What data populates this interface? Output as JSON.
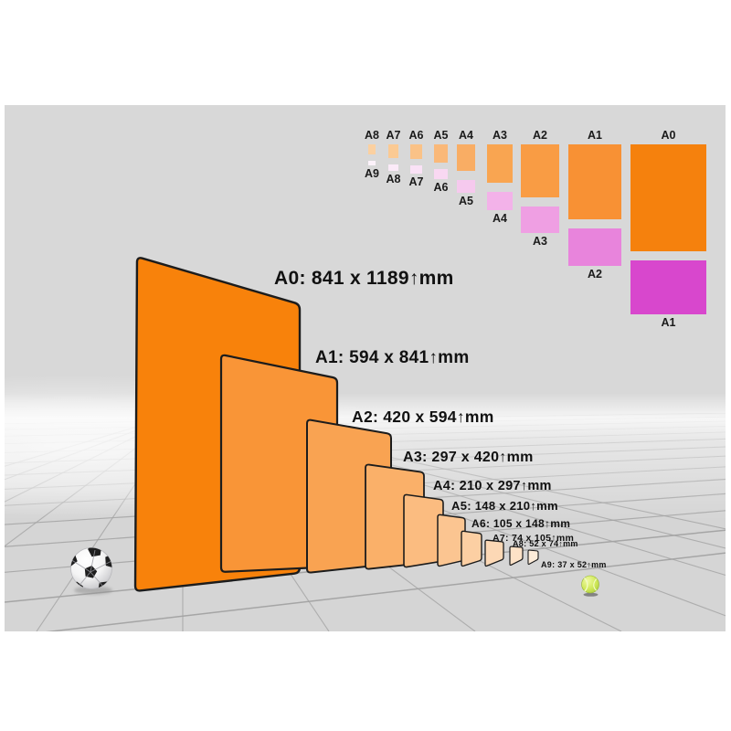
{
  "colors": {
    "background": "#ffffff",
    "wall": "#d8d8d8",
    "floor": "#d5d5d5",
    "grid_line": "#a2a2a2",
    "sheet_border": "#1c1c1c",
    "label_text": "#111111",
    "key_label_text": "#1a1a1a",
    "soccer_ball_patch": "#1e1e1e",
    "tennis_ball": "#c3dd4a",
    "shadow": "#909090"
  },
  "cascade": {
    "sheets": [
      {
        "id": "A0",
        "label": "A0: 841 x 1189↑mm",
        "fill": "#f8820b"
      },
      {
        "id": "A1",
        "label": "A1: 594 x 841↑mm",
        "fill": "#f99537"
      },
      {
        "id": "A2",
        "label": "A2: 420 x 594↑mm",
        "fill": "#f9a352"
      },
      {
        "id": "A3",
        "label": "A3: 297 x 420↑mm",
        "fill": "#fab069"
      },
      {
        "id": "A4",
        "label": "A4: 210 x 297↑mm",
        "fill": "#fbbc80"
      },
      {
        "id": "A5",
        "label": "A5: 148 x 210↑mm",
        "fill": "#fbc591"
      },
      {
        "id": "A6",
        "label": "A6: 105 x 148↑mm",
        "fill": "#fccfa3"
      },
      {
        "id": "A7",
        "label": "A7: 74 x 105↑mm",
        "fill": "#fcd8b5"
      },
      {
        "id": "A8",
        "label": "A8: 52 x 74↑mm",
        "fill": "#fde2c7"
      },
      {
        "id": "A9",
        "label": "A9: 37 x 52↑mm",
        "fill": "#fdecd9"
      }
    ]
  },
  "size_key": {
    "columns": [
      {
        "top_label": "A8",
        "bottom_label": "A9",
        "portrait_fill": "#fbd0a0",
        "landscape_fill": "#fcf2fa"
      },
      {
        "top_label": "A7",
        "bottom_label": "A8",
        "portrait_fill": "#fbca93",
        "landscape_fill": "#fbeaf8"
      },
      {
        "top_label": "A6",
        "bottom_label": "A7",
        "portrait_fill": "#fac287",
        "landscape_fill": "#fae2f6"
      },
      {
        "top_label": "A5",
        "bottom_label": "A6",
        "portrait_fill": "#fab878",
        "landscape_fill": "#f9d8f2"
      },
      {
        "top_label": "A4",
        "bottom_label": "A5",
        "portrait_fill": "#f9ad64",
        "landscape_fill": "#f6c9ee"
      },
      {
        "top_label": "A3",
        "bottom_label": "A4",
        "portrait_fill": "#f9a551",
        "landscape_fill": "#f3b2e9"
      },
      {
        "top_label": "A2",
        "bottom_label": "A3",
        "portrait_fill": "#f99c44",
        "landscape_fill": "#ef9fe3"
      },
      {
        "top_label": "A1",
        "bottom_label": "A2",
        "portrait_fill": "#f89134",
        "landscape_fill": "#e884dc"
      },
      {
        "top_label": "A0",
        "bottom_label": "A1",
        "portrait_fill": "#f5810d",
        "landscape_fill": "#d847cd"
      }
    ]
  },
  "icons": {
    "left_scale_object": "soccer-ball",
    "right_scale_object": "tennis-ball"
  }
}
